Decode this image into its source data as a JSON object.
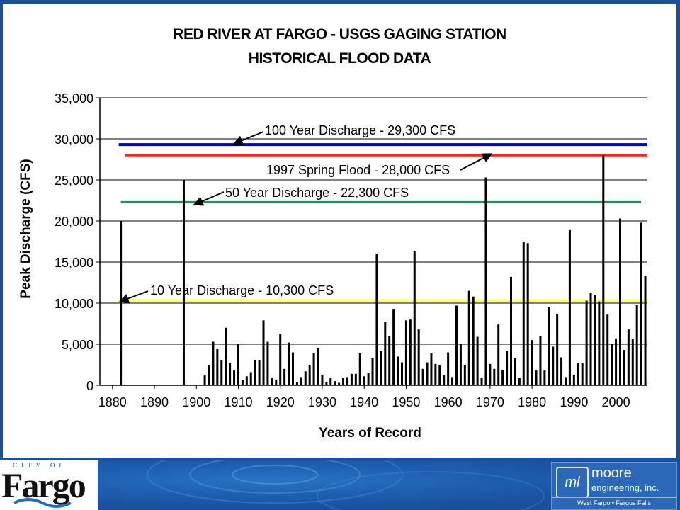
{
  "chart_data": {
    "type": "bar",
    "title_line1": "RED RIVER AT FARGO - USGS GAGING STATION",
    "title_line2": "HISTORICAL FLOOD DATA",
    "xlabel": "Years of Record",
    "ylabel": "Peak Discharge (CFS)",
    "xlim": [
      1877,
      2007.5
    ],
    "ylim": [
      0,
      35000
    ],
    "x_ticks": [
      1880,
      1890,
      1900,
      1910,
      1920,
      1930,
      1940,
      1950,
      1960,
      1970,
      1980,
      1990,
      2000
    ],
    "y_ticks": [
      0,
      5000,
      10000,
      15000,
      20000,
      25000,
      30000,
      35000
    ],
    "y_tick_labels": [
      "0",
      "5,000",
      "10,000",
      "15,000",
      "20,000",
      "25,000",
      "30,000",
      "35,000"
    ],
    "gridlines": "horizontal",
    "bar_color": "#000000",
    "reference_lines": [
      {
        "label": "100 Year Discharge - 29,300 CFS",
        "value": 29300,
        "color": "#0000cc"
      },
      {
        "label": "1997 Spring Flood - 28,000 CFS",
        "value": 28000,
        "color": "#ff2020"
      },
      {
        "label": "50 Year Discharge - 22,300 CFS",
        "value": 22300,
        "color": "#2e8b57"
      },
      {
        "label": "10 Year Discharge - 10,300 CFS",
        "value": 10300,
        "color": "#ffff66"
      }
    ],
    "x": [
      1882,
      1897,
      1902,
      1903,
      1904,
      1905,
      1906,
      1907,
      1908,
      1909,
      1910,
      1911,
      1912,
      1913,
      1914,
      1915,
      1916,
      1917,
      1918,
      1919,
      1920,
      1921,
      1922,
      1923,
      1924,
      1925,
      1926,
      1927,
      1928,
      1929,
      1930,
      1931,
      1932,
      1933,
      1934,
      1935,
      1936,
      1937,
      1938,
      1939,
      1940,
      1941,
      1942,
      1943,
      1944,
      1945,
      1946,
      1947,
      1948,
      1949,
      1950,
      1951,
      1952,
      1953,
      1954,
      1955,
      1956,
      1957,
      1958,
      1959,
      1960,
      1961,
      1962,
      1963,
      1964,
      1965,
      1966,
      1967,
      1968,
      1969,
      1970,
      1971,
      1972,
      1973,
      1974,
      1975,
      1976,
      1977,
      1978,
      1979,
      1980,
      1981,
      1982,
      1983,
      1984,
      1985,
      1986,
      1987,
      1988,
      1989,
      1990,
      1991,
      1992,
      1993,
      1994,
      1995,
      1996,
      1997,
      1998,
      1999,
      2000,
      2001,
      2002,
      2003,
      2004,
      2005,
      2006,
      2007
    ],
    "values": [
      20000,
      25000,
      1200,
      2500,
      5300,
      4400,
      3100,
      7000,
      2700,
      1800,
      5000,
      600,
      1100,
      1600,
      3100,
      3100,
      7900,
      5300,
      900,
      700,
      6200,
      2000,
      5200,
      4000,
      400,
      1000,
      1700,
      2500,
      3900,
      4500,
      1300,
      400,
      900,
      500,
      300,
      900,
      1000,
      1400,
      1400,
      3900,
      1100,
      1500,
      3300,
      16000,
      4200,
      7700,
      6000,
      9300,
      3500,
      2800,
      7900,
      8000,
      16300,
      6800,
      2000,
      2800,
      3900,
      2600,
      2500,
      1200,
      4000,
      1000,
      9700,
      5000,
      2500,
      11500,
      10800,
      5900,
      900,
      25300,
      2600,
      2000,
      7400,
      1900,
      4200,
      13200,
      3300,
      900,
      17500,
      17300,
      5500,
      1800,
      6000,
      1800,
      9500,
      4700,
      8700,
      3400,
      1000,
      18900,
      1300,
      2700,
      2700,
      10300,
      11300,
      11000,
      10200,
      28000,
      8600,
      5000,
      5700,
      20300,
      4300,
      6800,
      5600,
      9800,
      19800,
      13300
    ]
  },
  "footer": {
    "fargo_city": "CITY OF",
    "fargo_word": "Fargo",
    "moore_icon": "ml",
    "moore_name": "moore",
    "moore_sub": "engineering, inc.",
    "moore_loc": "West Fargo • Fergus Falls"
  }
}
